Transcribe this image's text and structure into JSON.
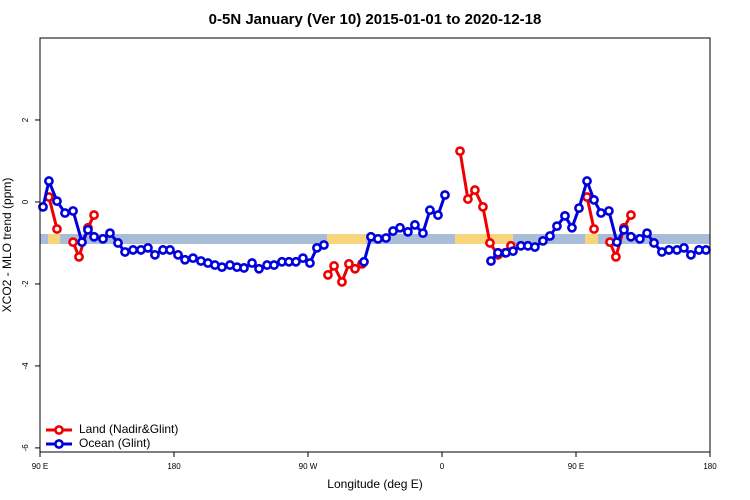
{
  "chart_data": {
    "type": "line",
    "title": "0-5N January (Ver 10)   2015-01-01 to 2020-12-18",
    "x_label": "Longitude (deg E)",
    "y_label": "XCO2 - MLO trend (ppm)",
    "xlim": [
      90,
      540
    ],
    "ylim": [
      -6.1,
      4.0
    ],
    "xticks": [
      {
        "value": 90,
        "label": "90 E"
      },
      180,
      {
        "value": 270,
        "label": "90 W"
      },
      {
        "value": 360,
        "label": "0"
      },
      {
        "value": 450,
        "label": "90 E"
      },
      {
        "value": 540,
        "label": "180"
      }
    ],
    "yticks": [
      2,
      0,
      -2,
      -4,
      -6
    ],
    "legend": "bottom left",
    "series": [
      {
        "name": "Land (Nadir&Glint)",
        "color": "#ee0000",
        "x": [
          96.0,
          101.4,
          null,
          112.2,
          116.2,
          122.2,
          126.3,
          null,
          283.4,
          287.5,
          292.8,
          297.5,
          301.6,
          306.3,
          null,
          372.1,
          377.4,
          382.1,
          387.5,
          392.2,
          397.6,
          402.3,
          406.3,
          null,
          457.4,
          462.1,
          null,
          472.8,
          476.8,
          482.2,
          486.9
        ],
        "values": [
          0.12,
          -0.66,
          null,
          -0.98,
          -1.34,
          -0.63,
          -0.32,
          null,
          -1.78,
          -1.56,
          -1.95,
          -1.51,
          -1.63,
          -1.51,
          null,
          1.24,
          0.07,
          0.29,
          -0.12,
          -1.0,
          -1.29,
          -1.24,
          -1.07,
          null,
          0.12,
          -0.66,
          null,
          -0.98,
          -1.34,
          -0.63,
          -0.32
        ]
      },
      {
        "name": "Ocean (Glint)",
        "color": "#0000dd",
        "x": [
          92.0,
          96.0,
          101.4,
          106.8,
          112.2,
          118.2,
          122.2,
          126.3,
          132.3,
          137.0,
          142.4,
          147.1,
          152.5,
          157.8,
          162.5,
          167.2,
          172.6,
          177.3,
          182.7,
          187.4,
          192.8,
          198.1,
          202.8,
          207.5,
          212.2,
          217.6,
          222.3,
          227.0,
          232.4,
          237.1,
          242.5,
          247.2,
          252.5,
          257.2,
          261.9,
          266.6,
          271.3,
          276.0,
          280.7,
          null,
          307.6,
          312.3,
          317.0,
          322.4,
          327.1,
          331.8,
          337.1,
          341.8,
          347.2,
          351.9,
          357.3,
          362.0,
          null,
          392.9,
          397.6,
          403.0,
          407.7,
          413.0,
          417.7,
          422.4,
          427.8,
          432.5,
          437.2,
          442.6,
          447.3,
          452.0,
          457.4,
          462.1,
          466.8,
          472.1,
          477.5,
          482.2,
          486.9,
          492.9,
          497.7,
          502.4,
          507.7,
          512.4,
          517.8,
          522.5,
          527.2,
          532.6,
          537.3
        ],
        "values": [
          -0.12,
          0.51,
          0.02,
          -0.27,
          -0.22,
          -0.98,
          -0.68,
          -0.85,
          -0.9,
          -0.76,
          -1.0,
          -1.22,
          -1.17,
          -1.17,
          -1.12,
          -1.29,
          -1.17,
          -1.17,
          -1.29,
          -1.41,
          -1.37,
          -1.44,
          -1.49,
          -1.54,
          -1.59,
          -1.54,
          -1.59,
          -1.61,
          -1.49,
          -1.63,
          -1.54,
          -1.54,
          -1.46,
          -1.46,
          -1.46,
          -1.37,
          -1.49,
          -1.12,
          -1.05,
          null,
          -1.46,
          -0.85,
          -0.9,
          -0.88,
          -0.71,
          -0.63,
          -0.73,
          -0.56,
          -0.76,
          -0.2,
          -0.32,
          0.17,
          null,
          -1.44,
          -1.24,
          -1.24,
          -1.2,
          -1.07,
          -1.07,
          -1.1,
          -0.95,
          -0.83,
          -0.59,
          -0.34,
          -0.63,
          -0.15,
          0.51,
          0.05,
          -0.27,
          -0.22,
          -0.98,
          -0.68,
          -0.85,
          -0.9,
          -0.76,
          -1.0,
          -1.22,
          -1.17,
          -1.17,
          -1.12,
          -1.29,
          -1.17,
          -1.17
        ]
      }
    ]
  }
}
